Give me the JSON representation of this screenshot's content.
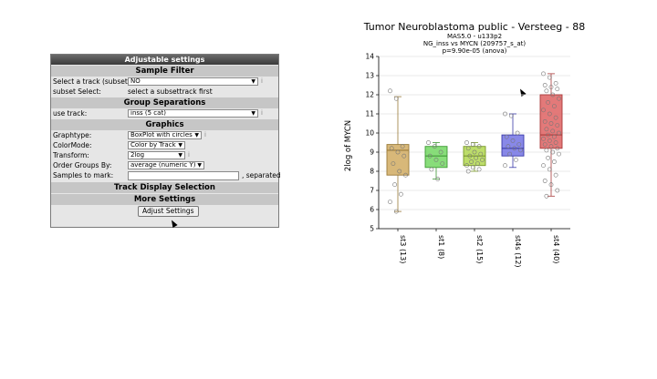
{
  "panel": {
    "title": "Adjustable settings",
    "sample_filter": "Sample Filter",
    "select_track_label": "Select a track (subset)",
    "select_track_value": "NO",
    "subset_select_label": "subset Select:",
    "subset_select_value": "select a subsettrack first",
    "group_separations": "Group Separations",
    "use_track_label": "use track:",
    "use_track_value": "inss (5 cat)",
    "graphics": "Graphics",
    "graphtype_label": "Graphtype:",
    "graphtype_value": "BoxPlot with circles",
    "colormode_label": "ColorMode:",
    "colormode_value": "Color by Track",
    "transform_label": "Transform:",
    "transform_value": "2log",
    "order_label": "Order Groups By:",
    "order_value": "average (numeric Y)",
    "samples_label": "Samples to mark:",
    "samples_suffix": ", separated",
    "track_display": "Track Display Selection",
    "more_settings": "More Settings",
    "adjust_button": "Adjust Settings",
    "info_glyph": "i",
    "arrow_glyph": "▼"
  },
  "chart_data": {
    "type": "boxplot",
    "title": "Tumor Neuroblastoma public - Versteeg - 88",
    "subtitle_lines": [
      "MAS5.0 - u133p2",
      "NG_inss vs MYCN (209757_s_at)",
      "p=9.90e-05  (anova)"
    ],
    "ylabel": "2log of MYCN",
    "ylim": [
      5,
      14
    ],
    "yticks": [
      5,
      6,
      7,
      8,
      9,
      10,
      11,
      12,
      13,
      14
    ],
    "grid": true,
    "categories": [
      "st3 (13)",
      "st1 (8)",
      "st2 (15)",
      "st4s (12)",
      "st4 (40)"
    ],
    "colors": [
      "#d4b06a",
      "#7bd96b",
      "#b6d95a",
      "#7b7be6",
      "#e06a6a"
    ],
    "strokes": [
      "#9a7a38",
      "#3f9a35",
      "#7a9a2a",
      "#3a3aa8",
      "#a83a3a"
    ],
    "boxes": [
      {
        "min": 5.9,
        "q1": 7.8,
        "median": 9.1,
        "q3": 9.4,
        "max": 11.9
      },
      {
        "min": 7.6,
        "q1": 8.2,
        "median": 8.8,
        "q3": 9.3,
        "max": 9.5
      },
      {
        "min": 8.0,
        "q1": 8.3,
        "median": 8.8,
        "q3": 9.3,
        "max": 9.5
      },
      {
        "min": 8.2,
        "q1": 8.8,
        "median": 9.2,
        "q3": 9.9,
        "max": 11.0
      },
      {
        "min": 6.7,
        "q1": 9.2,
        "median": 9.9,
        "q3": 12.0,
        "max": 13.1
      }
    ],
    "points": [
      [
        12.2,
        11.8,
        9.3,
        9.2,
        9.0,
        8.8,
        8.4,
        8.0,
        7.8,
        7.3,
        6.8,
        6.4,
        5.9
      ],
      [
        9.5,
        9.3,
        9.0,
        8.8,
        8.6,
        8.4,
        8.1,
        7.6
      ],
      [
        9.5,
        9.4,
        9.3,
        9.2,
        9.0,
        8.9,
        8.8,
        8.7,
        8.6,
        8.5,
        8.4,
        8.3,
        8.2,
        8.1,
        8.0
      ],
      [
        11.0,
        10.9,
        10.0,
        9.8,
        9.6,
        9.4,
        9.3,
        9.2,
        9.1,
        8.9,
        8.6,
        8.3
      ],
      [
        13.1,
        12.9,
        12.6,
        12.5,
        12.4,
        12.3,
        12.2,
        12.0,
        11.8,
        11.6,
        11.4,
        11.2,
        11.0,
        10.8,
        10.6,
        10.5,
        10.4,
        10.2,
        10.1,
        10.0,
        9.9,
        9.8,
        9.7,
        9.6,
        9.5,
        9.4,
        9.3,
        9.2,
        9.1,
        9.0,
        8.9,
        8.7,
        8.5,
        8.3,
        8.1,
        7.8,
        7.5,
        7.3,
        7.0,
        6.7
      ]
    ]
  }
}
